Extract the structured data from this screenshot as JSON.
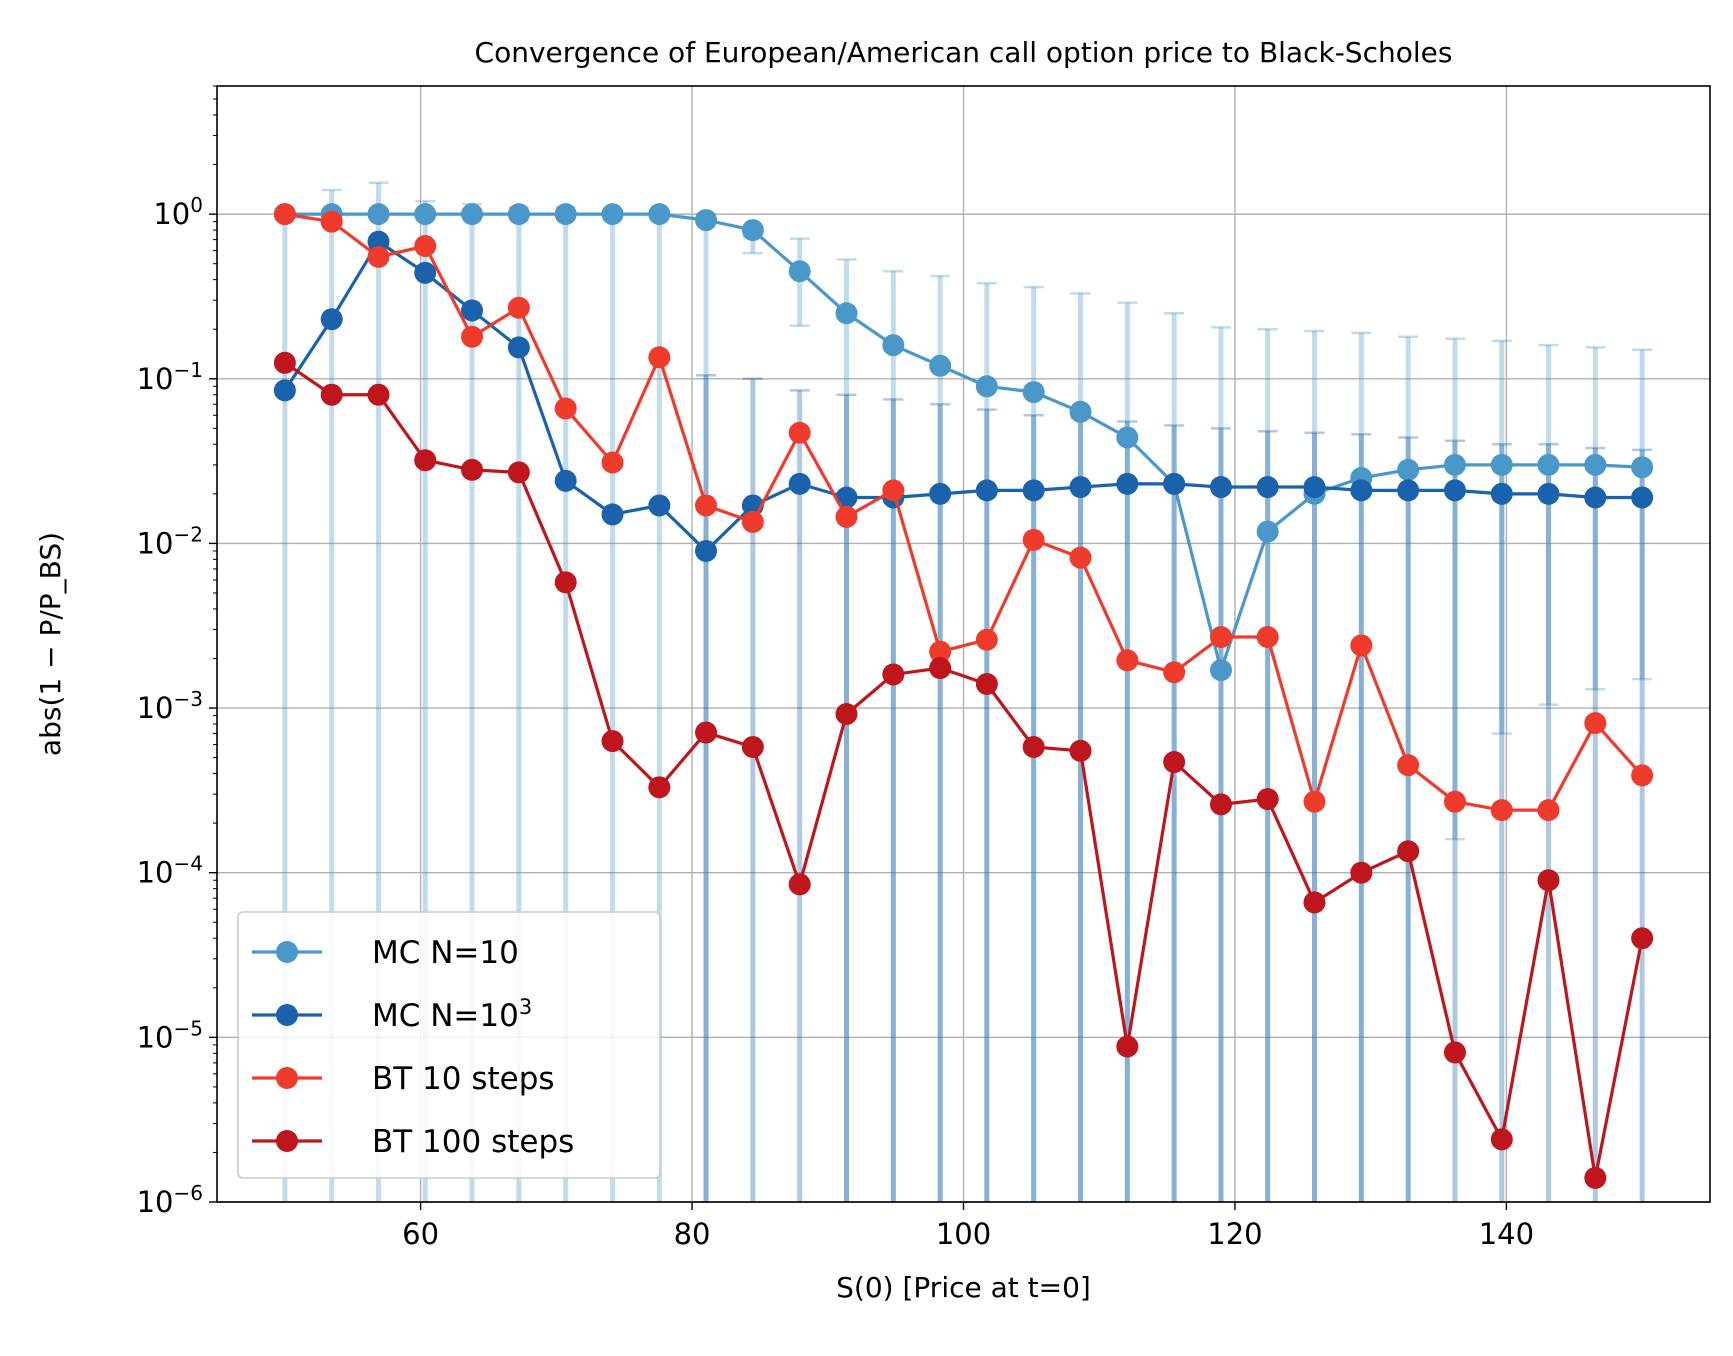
{
  "chart_data": {
    "type": "line",
    "title": "Convergence of European/American call option price to Black-Scholes",
    "xlabel": "S(0) [Price at t=0]",
    "ylabel": "abs(1 − P/P_BS)",
    "yscale": "log",
    "xlim": [
      45,
      155
    ],
    "ylim": [
      1e-06,
      6
    ],
    "xticks": [
      60,
      80,
      100,
      120,
      140
    ],
    "xtick_labels": [
      "60",
      "80",
      "100",
      "120",
      "140"
    ],
    "yticks": [
      1e-06,
      1e-05,
      0.0001,
      0.001,
      0.01,
      0.1,
      1
    ],
    "ytick_labels": [
      {
        "base": "10",
        "exp": "−6"
      },
      {
        "base": "10",
        "exp": "−5"
      },
      {
        "base": "10",
        "exp": "−4"
      },
      {
        "base": "10",
        "exp": "−3"
      },
      {
        "base": "10",
        "exp": "−2"
      },
      {
        "base": "10",
        "exp": "−1"
      },
      {
        "base": "10",
        "exp": "0"
      }
    ],
    "grid": true,
    "legend_position": "lower-left",
    "x": [
      50,
      53.45,
      56.9,
      60.34,
      63.79,
      67.24,
      70.69,
      74.14,
      77.59,
      81.03,
      84.48,
      87.93,
      91.38,
      94.83,
      98.28,
      101.72,
      105.17,
      108.62,
      112.07,
      115.52,
      118.97,
      122.41,
      125.86,
      129.31,
      132.76,
      136.21,
      139.66,
      143.1,
      146.55,
      150
    ],
    "series": [
      {
        "name": "MC N=10",
        "name_base": "MC N=10",
        "name_sup": "",
        "color": "#4a98c9",
        "values": [
          1.0,
          1.0,
          1.0,
          1.0,
          1.0,
          1.0,
          1.0,
          1.0,
          1.0,
          0.92,
          0.8,
          0.45,
          0.25,
          0.16,
          0.12,
          0.09,
          0.083,
          0.063,
          0.044,
          0.023,
          0.0017,
          0.0118,
          0.02,
          0.025,
          0.028,
          0.03,
          0.03,
          0.03,
          0.03,
          0.029
        ],
        "err_upper": [
          1.0,
          1.4,
          1.55,
          1.2,
          1.15,
          1.1,
          1.1,
          1.05,
          1.05,
          1.0,
          0.72,
          0.71,
          0.53,
          0.45,
          0.42,
          0.38,
          0.36,
          0.33,
          0.29,
          0.25,
          0.205,
          0.2,
          0.195,
          0.19,
          0.18,
          0.175,
          0.17,
          0.16,
          0.155,
          0.15
        ],
        "err_lower": [
          null,
          null,
          null,
          null,
          null,
          null,
          null,
          null,
          null,
          null,
          0.58,
          0.21,
          null,
          null,
          null,
          null,
          null,
          null,
          null,
          null,
          null,
          null,
          null,
          null,
          null,
          0.00016,
          0.0007,
          0.00105,
          0.0013,
          0.0015
        ]
      },
      {
        "name": "MC N=10^3",
        "name_base": "MC N=10",
        "name_sup": "3",
        "color": "#1a62ab",
        "values": [
          0.085,
          0.23,
          0.68,
          0.44,
          0.26,
          0.155,
          0.024,
          0.015,
          0.017,
          0.009,
          0.017,
          0.023,
          0.019,
          0.019,
          0.02,
          0.021,
          0.021,
          0.022,
          0.023,
          0.023,
          0.022,
          0.022,
          0.022,
          0.021,
          0.021,
          0.021,
          0.02,
          0.02,
          0.019,
          0.019
        ],
        "err_upper": [
          null,
          null,
          null,
          null,
          null,
          null,
          null,
          null,
          null,
          0.105,
          0.1,
          0.085,
          0.08,
          0.075,
          0.07,
          0.065,
          0.06,
          0.058,
          0.055,
          0.052,
          0.05,
          0.048,
          0.047,
          0.046,
          0.044,
          0.042,
          0.04,
          0.04,
          0.038,
          0.037
        ],
        "err_lower": []
      },
      {
        "name": "BT 10 steps",
        "name_base": "BT 10 steps",
        "name_sup": "",
        "color": "#ef3b2c",
        "values": [
          1.0,
          0.9,
          0.55,
          0.64,
          0.18,
          0.27,
          0.066,
          0.031,
          0.135,
          0.017,
          0.0135,
          0.047,
          0.0145,
          0.021,
          0.0022,
          0.0026,
          0.0105,
          0.0082,
          0.00195,
          0.00165,
          0.0027,
          0.0027,
          0.00027,
          0.0024,
          0.00045,
          0.00027,
          0.00024,
          0.00024,
          0.00081,
          0.00039
        ]
      },
      {
        "name": "BT 100 steps",
        "name_base": "BT 100 steps",
        "name_sup": "",
        "color": "#bf151c",
        "values": [
          0.125,
          0.08,
          0.08,
          0.032,
          0.028,
          0.027,
          0.0058,
          0.00063,
          0.00033,
          0.00071,
          0.00058,
          8.5e-05,
          0.00092,
          0.0016,
          0.00175,
          0.0014,
          0.00058,
          0.00055,
          8.8e-06,
          0.00047,
          0.00026,
          0.00028,
          6.6e-05,
          0.0001,
          0.000135,
          8.1e-06,
          2.4e-06,
          9e-05,
          1.4e-06,
          4e-05
        ]
      }
    ]
  }
}
